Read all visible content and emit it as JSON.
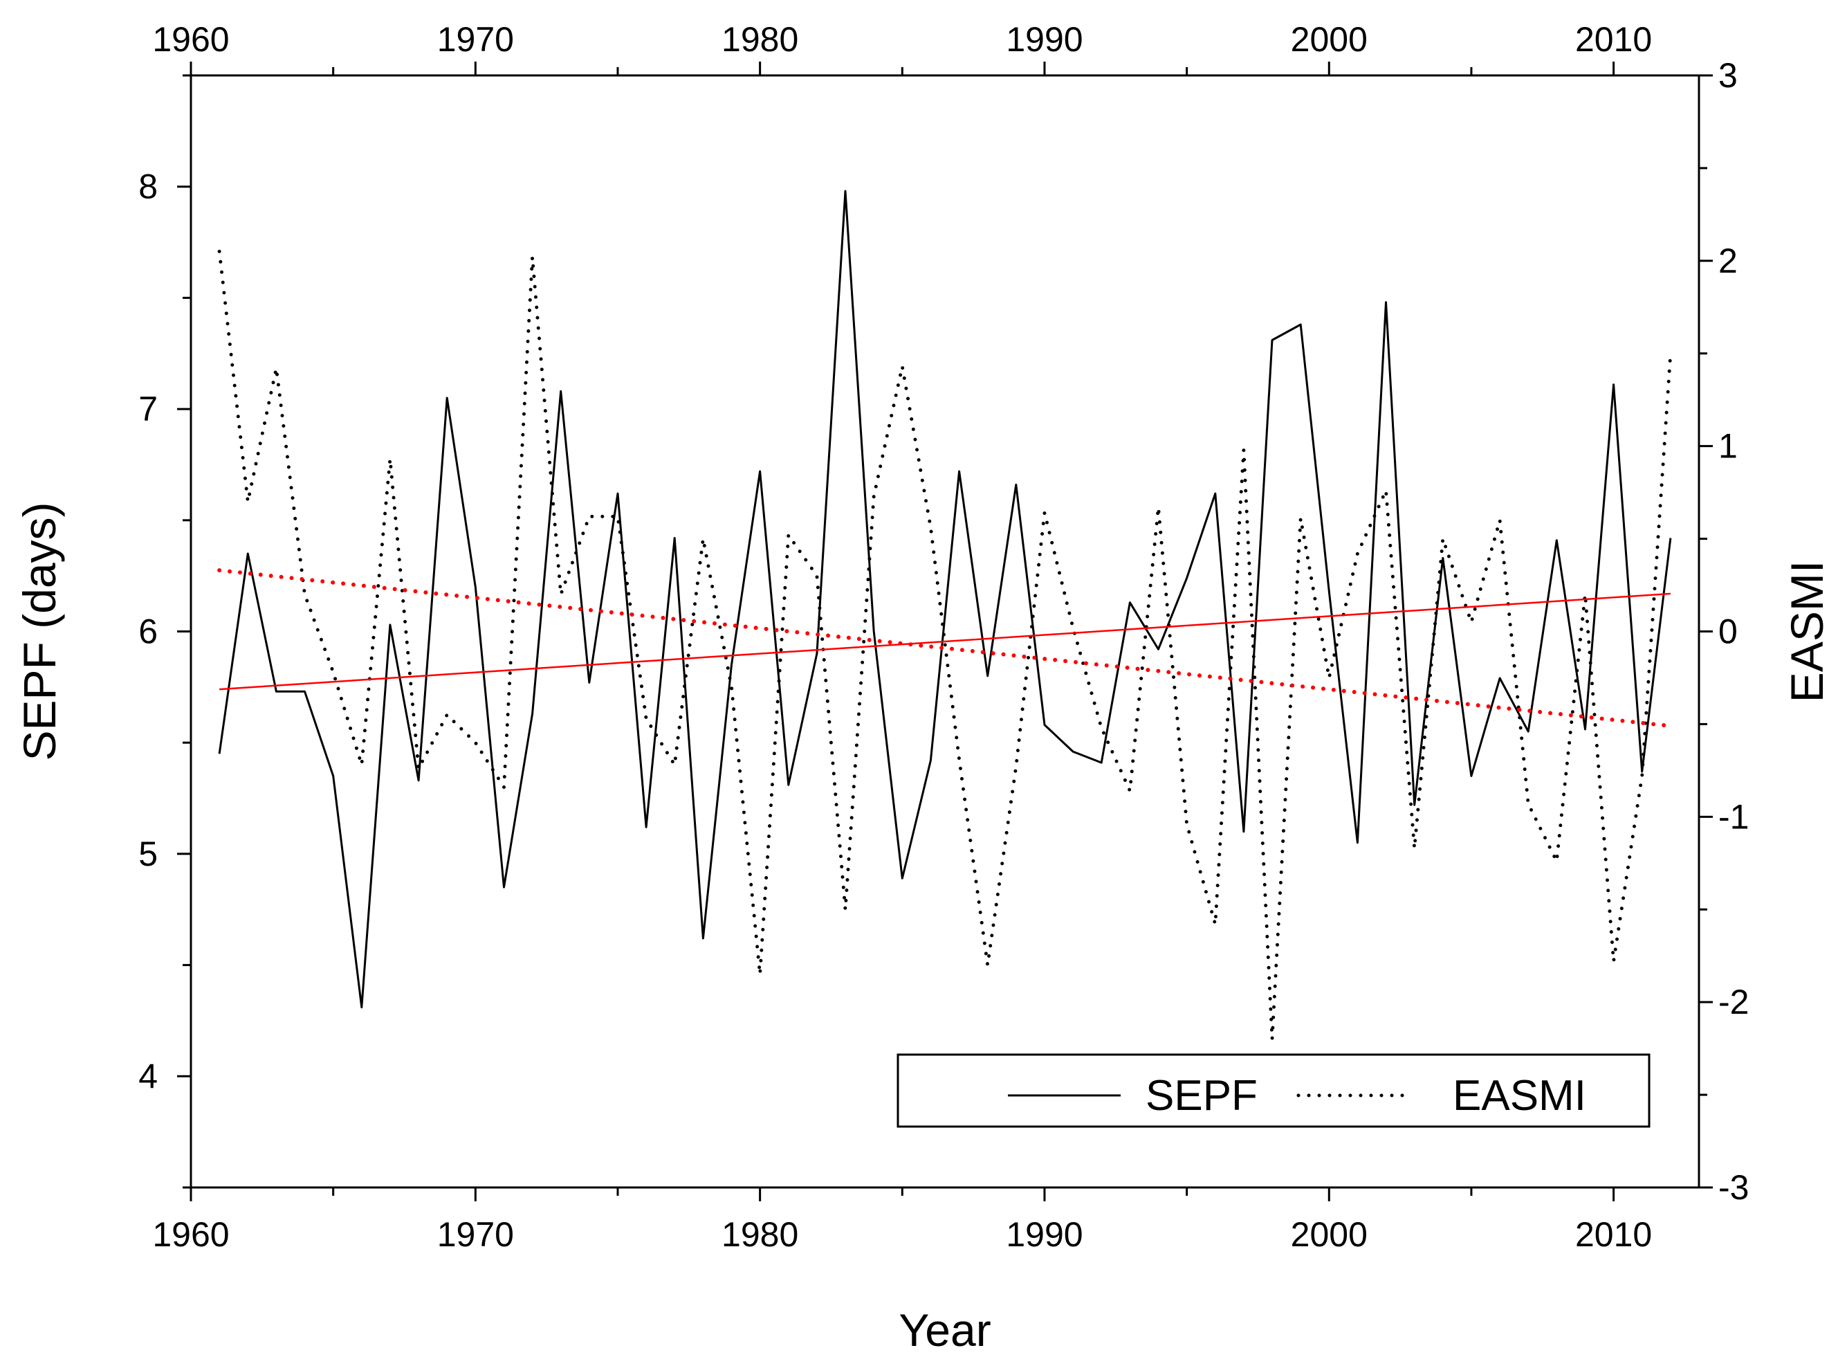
{
  "chart_data": {
    "type": "line",
    "title": "",
    "xlabel": "Year",
    "ylabel": "SEPF (days)",
    "y2label": "EASMI",
    "xlim": [
      1960,
      2013
    ],
    "ylim": [
      3.5,
      8.5
    ],
    "y2lim": [
      -3,
      3
    ],
    "x_ticks": [
      1960,
      1970,
      1980,
      1990,
      2000,
      2010
    ],
    "x_tick_labels": [
      "1960",
      "1970",
      "1980",
      "1990",
      "2000",
      "2010"
    ],
    "y_ticks": [
      4,
      5,
      6,
      7,
      8
    ],
    "y_tick_labels": [
      "4",
      "5",
      "6",
      "7",
      "8"
    ],
    "y2_ticks": [
      -3,
      -2,
      -1,
      0,
      1,
      2,
      3
    ],
    "y2_tick_labels": [
      "-3",
      "-2",
      "-1",
      "0",
      "1",
      "2",
      "3"
    ],
    "x": [
      1961,
      1962,
      1963,
      1964,
      1965,
      1966,
      1967,
      1968,
      1969,
      1970,
      1971,
      1972,
      1973,
      1974,
      1975,
      1976,
      1977,
      1978,
      1979,
      1980,
      1981,
      1982,
      1983,
      1984,
      1985,
      1986,
      1987,
      1988,
      1989,
      1990,
      1991,
      1992,
      1993,
      1994,
      1995,
      1996,
      1997,
      1998,
      1999,
      2000,
      2001,
      2002,
      2003,
      2004,
      2005,
      2006,
      2007,
      2008,
      2009,
      2010,
      2011,
      2012
    ],
    "series": [
      {
        "name": "SEPF",
        "axis": "left",
        "style": "solid",
        "color": "#000000",
        "values": [
          5.45,
          6.35,
          5.73,
          5.73,
          5.35,
          4.31,
          6.03,
          5.33,
          7.05,
          6.2,
          4.85,
          5.63,
          7.08,
          5.77,
          6.62,
          5.12,
          6.42,
          4.62,
          5.85,
          6.72,
          5.31,
          5.9,
          7.98,
          6.0,
          4.89,
          5.42,
          6.72,
          5.8,
          6.66,
          5.58,
          5.46,
          5.41,
          6.13,
          5.92,
          6.24,
          6.62,
          5.1,
          7.31,
          7.38,
          6.18,
          5.05,
          7.48,
          5.22,
          6.33,
          5.35,
          5.79,
          5.55,
          6.41,
          5.56,
          7.11,
          5.37,
          6.42
        ]
      },
      {
        "name": "EASMI",
        "axis": "right",
        "style": "dotted",
        "color": "#000000",
        "values": [
          2.05,
          0.7,
          1.42,
          0.2,
          -0.22,
          -0.72,
          0.93,
          -0.74,
          -0.45,
          -0.6,
          -0.84,
          2.02,
          0.2,
          0.62,
          0.62,
          -0.47,
          -0.72,
          0.5,
          -0.3,
          -1.85,
          0.52,
          0.3,
          -1.5,
          0.73,
          1.43,
          0.56,
          -0.69,
          -1.8,
          -0.73,
          0.64,
          0.02,
          -0.52,
          -0.86,
          0.67,
          -1.04,
          -1.58,
          0.98,
          -2.2,
          0.61,
          -0.25,
          0.42,
          0.76,
          -1.17,
          0.5,
          0.05,
          0.6,
          -0.93,
          -1.24,
          0.2,
          -1.78,
          -0.78,
          1.5
        ]
      },
      {
        "name": "SEPF trend",
        "axis": "left",
        "style": "solid",
        "color": "#ff0000",
        "x": [
          1961,
          2012
        ],
        "values": [
          5.74,
          6.17
        ]
      },
      {
        "name": "EASMI trend",
        "axis": "right",
        "style": "dotted",
        "color": "#ff0000",
        "x": [
          1961,
          2012
        ],
        "values": [
          0.33,
          -0.51
        ]
      }
    ],
    "legend": {
      "position": "bottom-right",
      "entries": [
        {
          "label": "SEPF",
          "style": "solid"
        },
        {
          "label": "EASMI",
          "style": "dotted"
        }
      ]
    },
    "grid": false
  }
}
